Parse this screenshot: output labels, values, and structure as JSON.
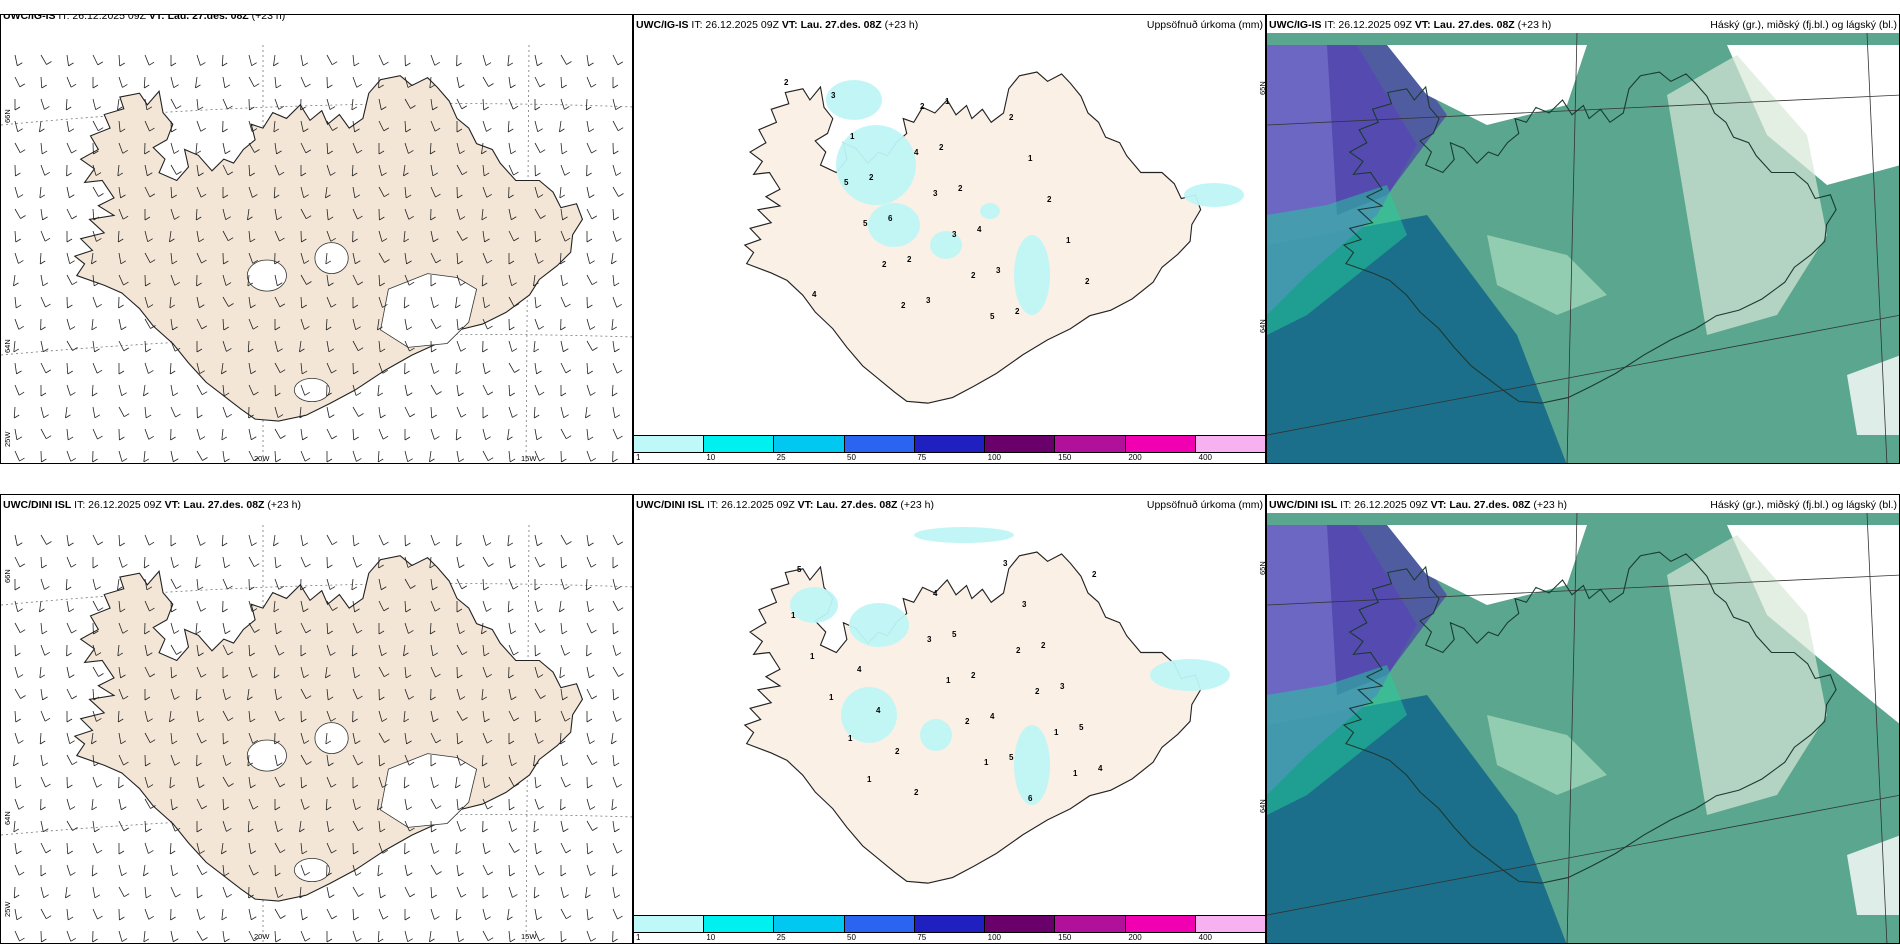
{
  "rows": [
    {
      "wind": {
        "model": "UWC/IG-IS",
        "it": "IT: 26.12.2025 09Z",
        "vt": "VT: Lau. 27.des. 08Z",
        "lead": "(+23 h)"
      },
      "precip": {
        "model": "UWC/IG-IS",
        "it": "IT: 26.12.2025 09Z",
        "vt": "VT: Lau. 27.des. 08Z",
        "lead": "(+23 h)",
        "right": "Uppsöfnuð úrkoma (mm)"
      },
      "cloud": {
        "model": "UWC/IG-IS",
        "it": "IT: 26.12.2025 09Z",
        "vt": "VT: Lau. 27.des. 08Z",
        "lead": "(+23 h)",
        "right": "Háský (gr.), miðský (fj.bl.) og lágský (bl.)"
      },
      "precip_numbers": [
        "2",
        "2",
        "1",
        "2",
        "1",
        "2",
        "5",
        "2",
        "3",
        "3",
        "4",
        "2",
        "3",
        "4",
        "2",
        "2",
        "2",
        "2",
        "2",
        "5",
        "5",
        "1",
        "3",
        "2",
        "6",
        "2",
        "1",
        "3",
        "4"
      ]
    },
    {
      "wind": {
        "model": "UWC/DINI ISL",
        "it": "IT: 26.12.2025 09Z",
        "vt": "VT: Lau. 27.des. 08Z",
        "lead": "(+23 h)"
      },
      "precip": {
        "model": "UWC/DINI ISL",
        "it": "IT: 26.12.2025 09Z",
        "vt": "VT: Lau. 27.des. 08Z",
        "lead": "(+23 h)",
        "right": "Uppsöfnuð úrkoma (mm)"
      },
      "cloud": {
        "model": "UWC/DINI ISL",
        "it": "IT: 26.12.2025 09Z",
        "vt": "VT: Lau. 27.des. 08Z",
        "lead": "(+23 h)",
        "right": "Háský (gr.), miðský (fj.bl.) og lágský (bl.)"
      },
      "precip_numbers": [
        "1",
        "1",
        "1",
        "1",
        "1",
        "2",
        "1",
        "1",
        "2",
        "2",
        "5",
        "4",
        "5",
        "3",
        "2",
        "3",
        "3",
        "1",
        "2",
        "1",
        "3",
        "6",
        "5",
        "4",
        "2",
        "5",
        "4",
        "2",
        "2",
        "4",
        "4"
      ]
    }
  ],
  "map_labels": {
    "lat_66": "66N",
    "lat_64": "64N",
    "lat_25": "25W",
    "lon_20": "20W",
    "lon_15": "15W"
  },
  "colorbar": {
    "ticks": [
      "1",
      "10",
      "25",
      "50",
      "75",
      "100",
      "150",
      "200",
      "400"
    ],
    "colors": [
      "#bff8f8",
      "#00f0f0",
      "#00c8f0",
      "#2a64f0",
      "#2020c0",
      "#6a006a",
      "#b0109a",
      "#f000b0",
      "#f7b0f0"
    ]
  },
  "colors": {
    "land": "#f3e6d6",
    "land_dini": "#fbf0e6",
    "precip_light": "#bff6f6",
    "cloud_ocean": "#1c6f8a",
    "cloud_low": "#5aa68e",
    "cloud_mid": "#20d09a",
    "cloud_high": "#6e60c8",
    "cloud_white": "#ffffff"
  }
}
